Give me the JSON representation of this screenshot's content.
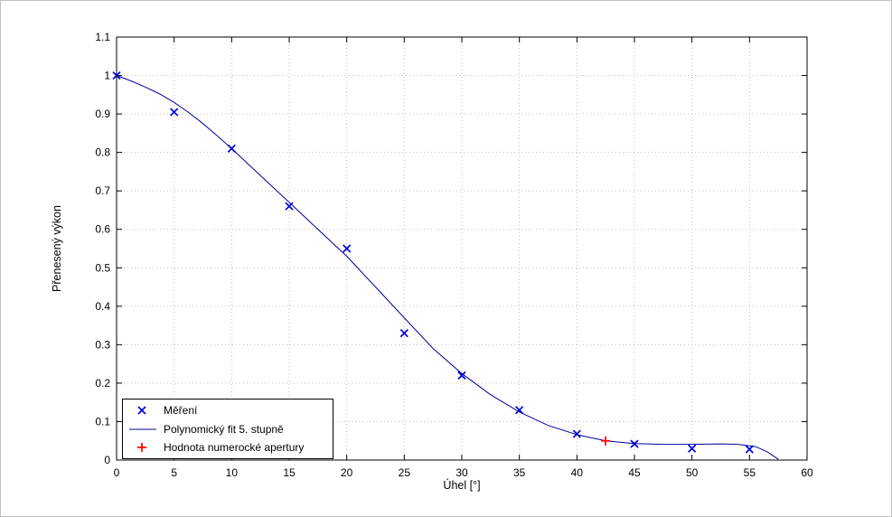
{
  "figure": {
    "background": "#ffffff",
    "border_color": "#c0c0c0"
  },
  "chart_data": {
    "type": "scatter",
    "title": "",
    "xlabel": "Úhel [°]",
    "ylabel": "Přenesený výkon",
    "xlim": [
      0,
      60
    ],
    "ylim": [
      0,
      1.1
    ],
    "xticks": [
      "0",
      "5",
      "10",
      "15",
      "20",
      "25",
      "30",
      "35",
      "40",
      "45",
      "50",
      "55",
      "60"
    ],
    "yticks": [
      "0",
      "0.1",
      "0.2",
      "0.3",
      "0.4",
      "0.5",
      "0.6",
      "0.7",
      "0.8",
      "0.9",
      "1",
      "1.1"
    ],
    "grid": true,
    "grid_style": "dotted",
    "grid_color": "#bdbdbd",
    "axis_color": "#000000",
    "legend_position": "lower-left",
    "series": [
      {
        "name": "Měření",
        "type": "scatter",
        "marker": "x",
        "color": "#0000dd",
        "x": [
          0,
          5,
          10,
          15,
          20,
          25,
          30,
          35,
          40,
          45,
          50,
          55
        ],
        "y": [
          1.0,
          0.905,
          0.81,
          0.66,
          0.55,
          0.33,
          0.22,
          0.13,
          0.068,
          0.042,
          0.03,
          0.028
        ]
      },
      {
        "name": "Polynomický fit 5. stupně",
        "type": "line",
        "marker": "none",
        "color": "#000099",
        "x": [
          0,
          1.25,
          2.5,
          3.75,
          5,
          6.25,
          7.5,
          8.75,
          10,
          12.5,
          15,
          17.5,
          20,
          22.5,
          25,
          27.5,
          30,
          32.5,
          35,
          37.5,
          40,
          42.5,
          45,
          47.5,
          50,
          52.5,
          54,
          55.5,
          56.5,
          57.5
        ],
        "y": [
          1.0,
          0.986,
          0.97,
          0.952,
          0.93,
          0.904,
          0.875,
          0.843,
          0.81,
          0.74,
          0.67,
          0.6,
          0.53,
          0.45,
          0.37,
          0.29,
          0.225,
          0.17,
          0.125,
          0.09,
          0.066,
          0.05,
          0.043,
          0.041,
          0.041,
          0.042,
          0.041,
          0.035,
          0.022,
          0.002
        ]
      },
      {
        "name": "Hodnota numerocké apertury",
        "type": "scatter",
        "marker": "+",
        "color": "#ff0000",
        "x": [
          42.5
        ],
        "y": [
          0.05
        ]
      }
    ]
  }
}
